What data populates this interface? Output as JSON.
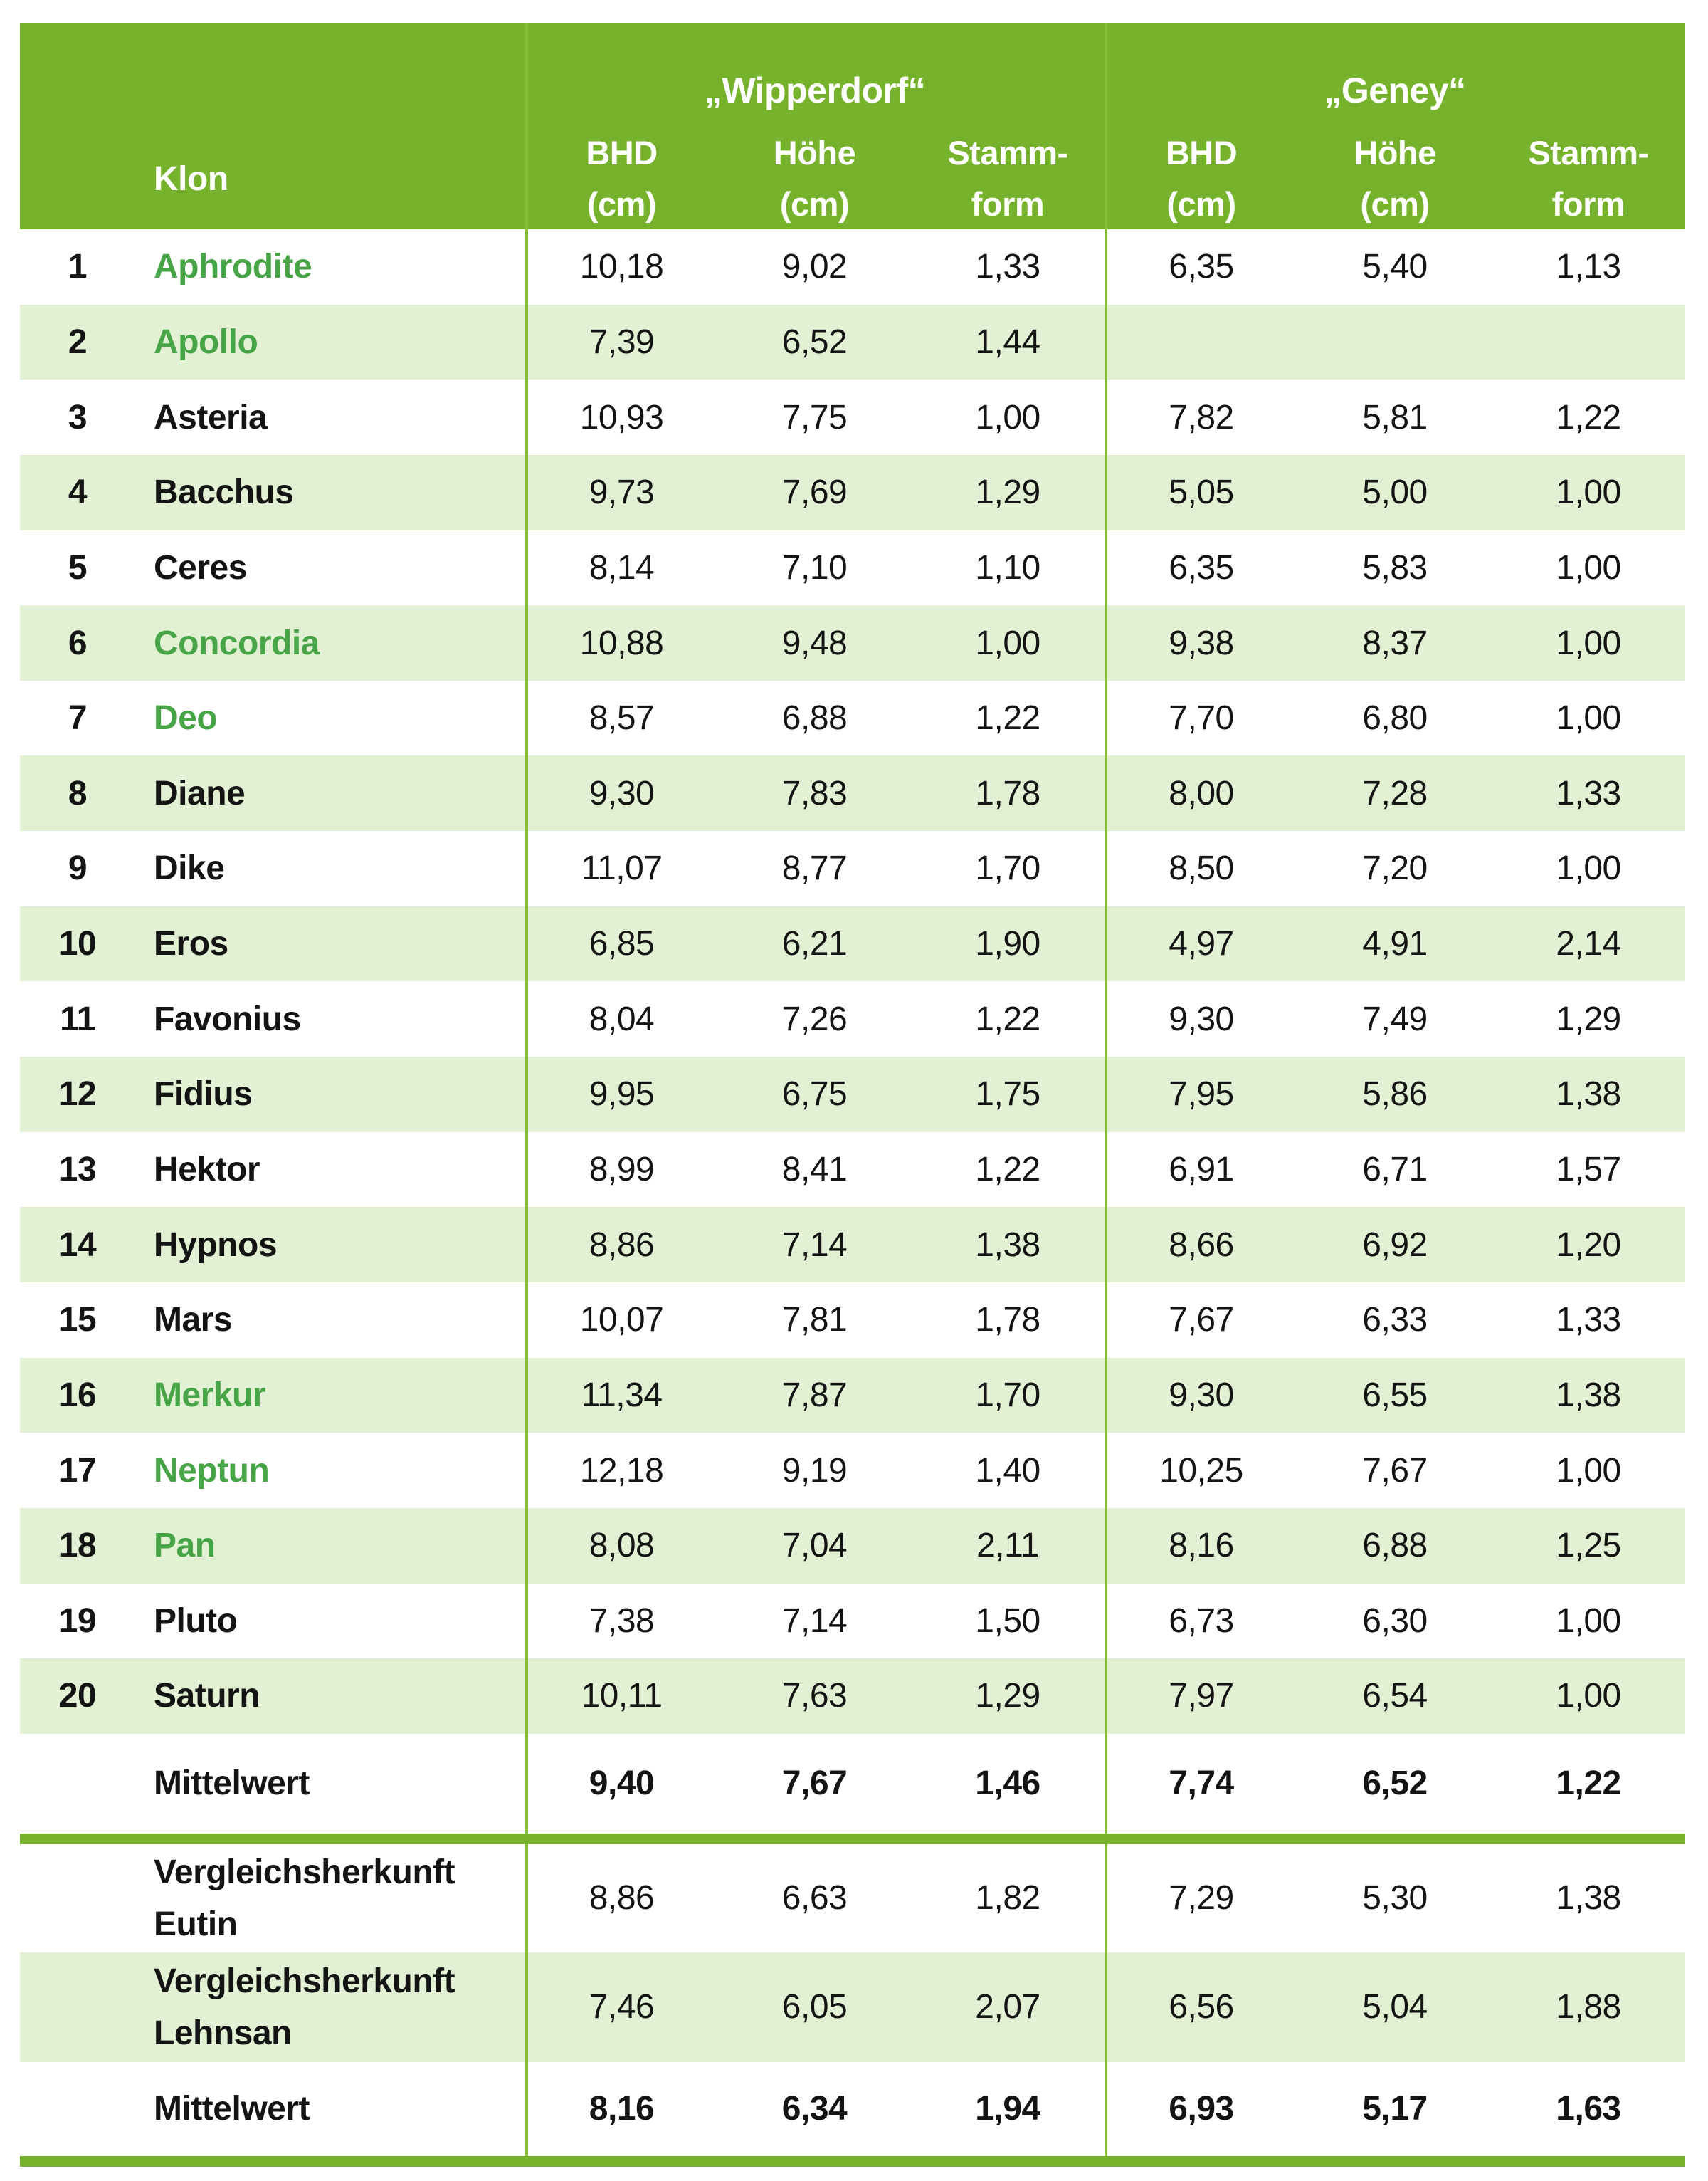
{
  "header": {
    "klon_label": "Klon",
    "groups": [
      {
        "name": "„Wipperdorf“",
        "columns": [
          {
            "line1": "BHD",
            "line2": "(cm)"
          },
          {
            "line1": "Höhe",
            "line2": "(cm)"
          },
          {
            "line1": "Stamm-",
            "line2": "form"
          }
        ]
      },
      {
        "name": "„Geney“",
        "columns": [
          {
            "line1": "BHD",
            "line2": "(cm)"
          },
          {
            "line1": "Höhe",
            "line2": "(cm)"
          },
          {
            "line1": "Stamm-",
            "line2": "form"
          }
        ]
      }
    ]
  },
  "rows": [
    {
      "num": "1",
      "name": "Aphrodite",
      "green": true,
      "values": [
        "10,18",
        "9,02",
        "1,33",
        "6,35",
        "5,40",
        "1,13"
      ]
    },
    {
      "num": "2",
      "name": "Apollo",
      "green": true,
      "values": [
        "7,39",
        "6,52",
        "1,44",
        "",
        "",
        ""
      ]
    },
    {
      "num": "3",
      "name": "Asteria",
      "green": false,
      "values": [
        "10,93",
        "7,75",
        "1,00",
        "7,82",
        "5,81",
        "1,22"
      ]
    },
    {
      "num": "4",
      "name": "Bacchus",
      "green": false,
      "values": [
        "9,73",
        "7,69",
        "1,29",
        "5,05",
        "5,00",
        "1,00"
      ]
    },
    {
      "num": "5",
      "name": "Ceres",
      "green": false,
      "values": [
        "8,14",
        "7,10",
        "1,10",
        "6,35",
        "5,83",
        "1,00"
      ]
    },
    {
      "num": "6",
      "name": "Concordia",
      "green": true,
      "values": [
        "10,88",
        "9,48",
        "1,00",
        "9,38",
        "8,37",
        "1,00"
      ]
    },
    {
      "num": "7",
      "name": "Deo",
      "green": true,
      "values": [
        "8,57",
        "6,88",
        "1,22",
        "7,70",
        "6,80",
        "1,00"
      ]
    },
    {
      "num": "8",
      "name": "Diane",
      "green": false,
      "values": [
        "9,30",
        "7,83",
        "1,78",
        "8,00",
        "7,28",
        "1,33"
      ]
    },
    {
      "num": "9",
      "name": "Dike",
      "green": false,
      "values": [
        "11,07",
        "8,77",
        "1,70",
        "8,50",
        "7,20",
        "1,00"
      ]
    },
    {
      "num": "10",
      "name": "Eros",
      "green": false,
      "values": [
        "6,85",
        "6,21",
        "1,90",
        "4,97",
        "4,91",
        "2,14"
      ]
    },
    {
      "num": "11",
      "name": "Favonius",
      "green": false,
      "values": [
        "8,04",
        "7,26",
        "1,22",
        "9,30",
        "7,49",
        "1,29"
      ]
    },
    {
      "num": "12",
      "name": "Fidius",
      "green": false,
      "values": [
        "9,95",
        "6,75",
        "1,75",
        "7,95",
        "5,86",
        "1,38"
      ]
    },
    {
      "num": "13",
      "name": "Hektor",
      "green": false,
      "values": [
        "8,99",
        "8,41",
        "1,22",
        "6,91",
        "6,71",
        "1,57"
      ]
    },
    {
      "num": "14",
      "name": "Hypnos",
      "green": false,
      "values": [
        "8,86",
        "7,14",
        "1,38",
        "8,66",
        "6,92",
        "1,20"
      ]
    },
    {
      "num": "15",
      "name": "Mars",
      "green": false,
      "values": [
        "10,07",
        "7,81",
        "1,78",
        "7,67",
        "6,33",
        "1,33"
      ]
    },
    {
      "num": "16",
      "name": "Merkur",
      "green": true,
      "values": [
        "11,34",
        "7,87",
        "1,70",
        "9,30",
        "6,55",
        "1,38"
      ]
    },
    {
      "num": "17",
      "name": "Neptun",
      "green": true,
      "values": [
        "12,18",
        "9,19",
        "1,40",
        "10,25",
        "7,67",
        "1,00"
      ]
    },
    {
      "num": "18",
      "name": "Pan",
      "green": true,
      "values": [
        "8,08",
        "7,04",
        "2,11",
        "8,16",
        "6,88",
        "1,25"
      ]
    },
    {
      "num": "19",
      "name": "Pluto",
      "green": false,
      "values": [
        "7,38",
        "7,14",
        "1,50",
        "6,73",
        "6,30",
        "1,00"
      ]
    },
    {
      "num": "20",
      "name": "Saturn",
      "green": false,
      "values": [
        "10,11",
        "7,63",
        "1,29",
        "7,97",
        "6,54",
        "1,00"
      ]
    }
  ],
  "summary": [
    {
      "type": "mean",
      "label": "Mittelwert",
      "values": [
        "9,40",
        "7,67",
        "1,46",
        "7,74",
        "6,52",
        "1,22"
      ]
    },
    {
      "type": "bar"
    },
    {
      "type": "comparison",
      "label_lines": [
        "Vergleichsherkunft",
        "Eutin"
      ],
      "values": [
        "8,86",
        "6,63",
        "1,82",
        "7,29",
        "5,30",
        "1,38"
      ]
    },
    {
      "type": "comparison",
      "label_lines": [
        "Vergleichsherkunft",
        "Lehnsan"
      ],
      "values": [
        "7,46",
        "6,05",
        "2,07",
        "6,56",
        "5,04",
        "1,88"
      ]
    },
    {
      "type": "mean",
      "label": "Mittelwert",
      "values": [
        "8,16",
        "6,34",
        "1,94",
        "6,93",
        "5,17",
        "1,63"
      ]
    },
    {
      "type": "bar"
    }
  ],
  "colors": {
    "header_green": "#76B22B",
    "stripe_green": "#E2F0D3",
    "rule_green": "#87BC3A",
    "name_green": "#47A447",
    "text_black": "#141414"
  }
}
